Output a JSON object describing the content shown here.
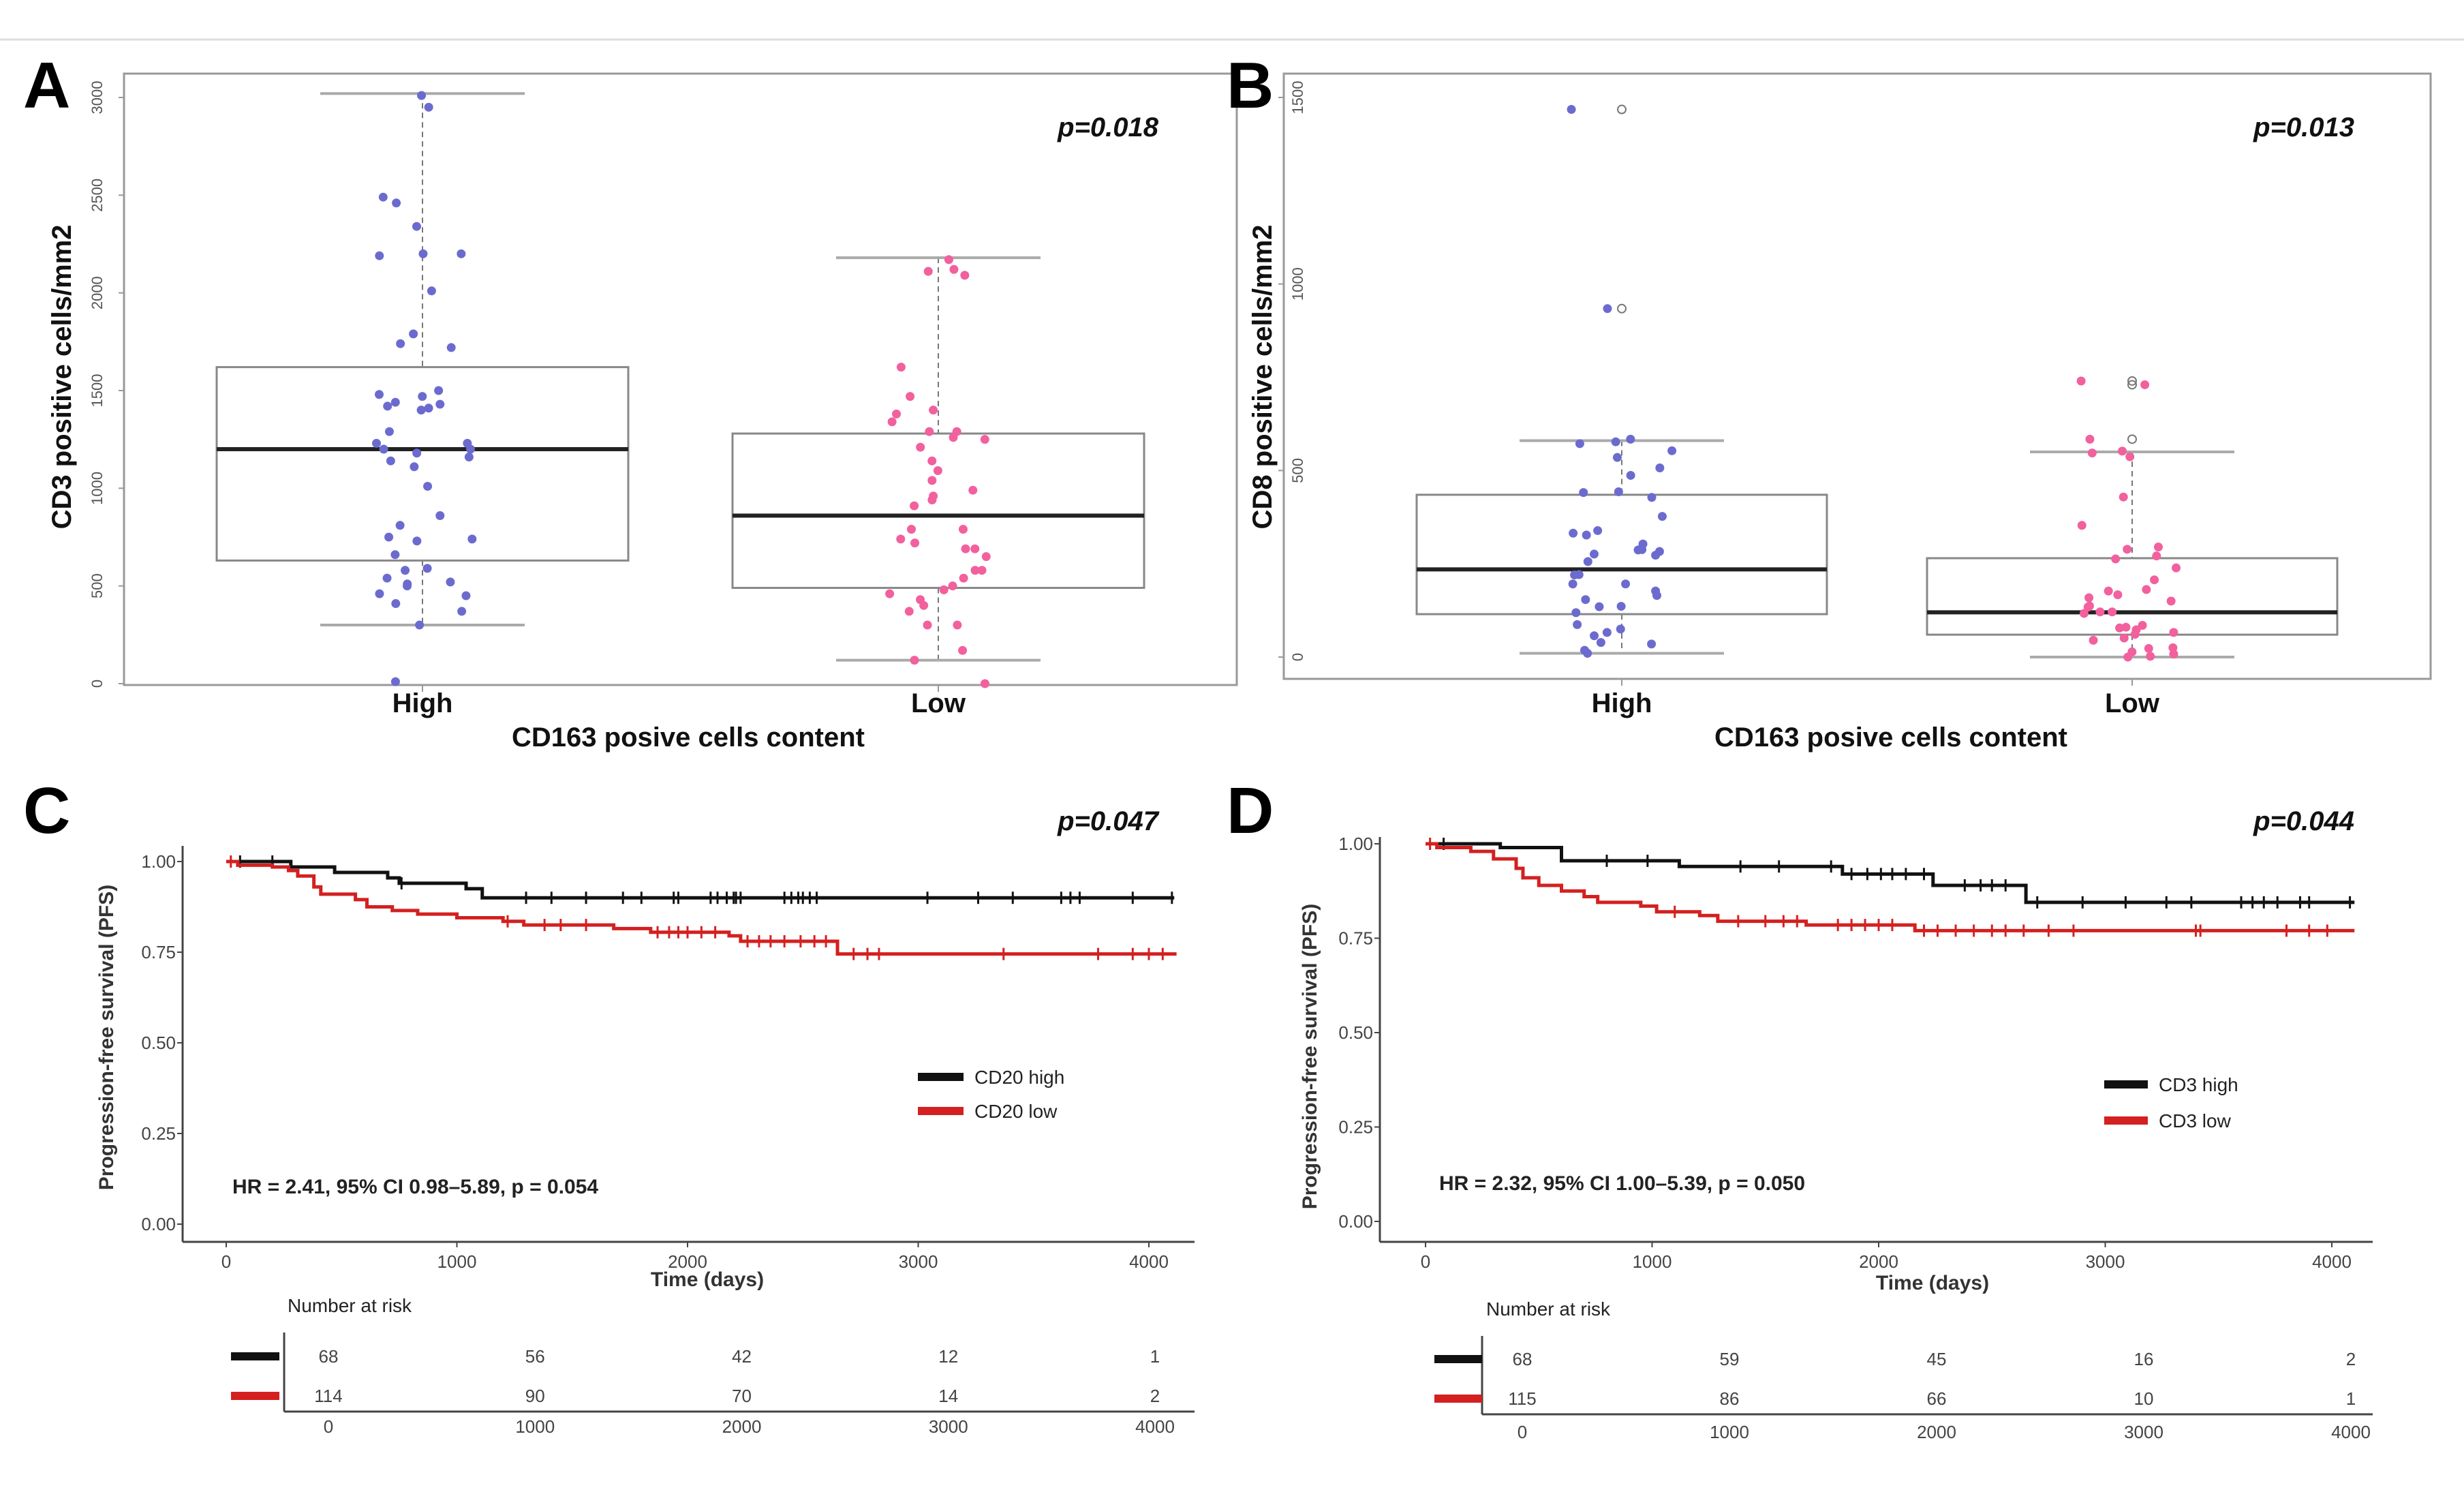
{
  "colors": {
    "high_dots": "#6b6bcf",
    "low_dots": "#f2609e",
    "km_high": "#111111",
    "km_low": "#d42020",
    "box": "#888888"
  },
  "chart_data": [
    {
      "panel": "A",
      "type": "box",
      "p_label": "p=0.018",
      "ylabel": "CD3 positive cells/mm2",
      "xlabel": "CD163 posive cells content",
      "ylim": [
        0,
        3000
      ],
      "yticks": [
        0,
        500,
        1000,
        1500,
        2000,
        2500,
        3000
      ],
      "categories": [
        "High",
        "Low"
      ],
      "boxes": [
        {
          "whisker_low": 300,
          "q1": 630,
          "median": 1200,
          "q3": 1620,
          "whisker_high": 3020,
          "outliers": []
        },
        {
          "whisker_low": 120,
          "q1": 490,
          "median": 860,
          "q3": 1280,
          "whisker_high": 2180,
          "outliers": []
        }
      ],
      "points": [
        [
          3010,
          2950,
          2490,
          2460,
          2340,
          2200,
          2190,
          2200,
          2010,
          1790,
          1740,
          1720,
          1500,
          1480,
          1470,
          1440,
          1430,
          1420,
          1410,
          1400,
          1290,
          1230,
          1230,
          1200,
          1200,
          1180,
          1160,
          1140,
          1110,
          1010,
          860,
          810,
          750,
          740,
          730,
          660,
          590,
          580,
          540,
          520,
          510,
          500,
          460,
          450,
          410,
          370,
          300,
          10
        ],
        [
          2170,
          2110,
          2090,
          2120,
          1620,
          1470,
          1400,
          1380,
          1340,
          1290,
          1290,
          1260,
          1250,
          1210,
          1140,
          1090,
          1040,
          990,
          960,
          940,
          910,
          790,
          790,
          740,
          720,
          690,
          690,
          650,
          580,
          580,
          540,
          500,
          480,
          460,
          430,
          400,
          370,
          300,
          300,
          170,
          120,
          0
        ]
      ]
    },
    {
      "panel": "B",
      "type": "box",
      "p_label": "p=0.013",
      "ylabel": "CD8 positive cells/mm2",
      "xlabel": "CD163 posive cells content",
      "ylim": [
        0,
        1500
      ],
      "yticks": [
        0,
        500,
        1000,
        1500
      ],
      "categories": [
        "High",
        "Low"
      ],
      "boxes": [
        {
          "whisker_low": 10,
          "q1": 115,
          "median": 235,
          "q3": 435,
          "whisker_high": 580,
          "outliers": [
            934,
            1468
          ]
        },
        {
          "whisker_low": 0,
          "q1": 60,
          "median": 120,
          "q3": 265,
          "whisker_high": 550,
          "outliers": [
            584,
            730,
            740
          ]
        }
      ],
      "points": [
        [
          1468,
          934,
          584,
          577,
          572,
          553,
          535,
          507,
          487,
          443,
          441,
          428,
          377,
          339,
          332,
          327,
          303,
          288,
          287,
          283,
          276,
          273,
          256,
          220,
          221,
          196,
          196,
          177,
          165,
          154,
          136,
          119,
          135,
          75,
          87,
          66,
          57,
          39,
          35,
          18,
          10
        ],
        [
          740,
          730,
          584,
          552,
          547,
          537,
          429,
          353,
          295,
          289,
          271,
          263,
          239,
          207,
          181,
          177,
          167,
          159,
          150,
          137,
          134,
          121,
          121,
          117,
          85,
          80,
          78,
          73,
          66,
          61,
          51,
          45,
          25,
          23,
          14,
          8,
          2,
          0
        ]
      ]
    },
    {
      "panel": "C",
      "type": "line",
      "p_label": "p=0.047",
      "ylabel": "Progression-free survival (PFS)",
      "xlabel": "Time (days)",
      "xlim": [
        0,
        4000
      ],
      "ylim": [
        0,
        1
      ],
      "xticks": [
        "0",
        "1000",
        "2000",
        "3000",
        "4000"
      ],
      "yticks": [
        "0.00",
        "0.25",
        "0.50",
        "0.75",
        "1.00"
      ],
      "annotation": "HR = 2.41, 95% CI 0.98–5.89, p = 0.054",
      "series": [
        {
          "name": "CD20 high",
          "steps": [
            [
              0,
              1.0
            ],
            [
              280,
              0.985
            ],
            [
              470,
              0.97
            ],
            [
              700,
              0.955
            ],
            [
              750,
              0.94
            ],
            [
              1040,
              0.925
            ],
            [
              1110,
              0.9
            ]
          ],
          "end": 4110,
          "censored": [
            60,
            200,
            760,
            1300,
            1410,
            1560,
            1720,
            1800,
            1940,
            1960,
            2100,
            2130,
            2170,
            2200,
            2210,
            2230,
            2420,
            2450,
            2480,
            2500,
            2530,
            2560,
            3040,
            3260,
            3410,
            3620,
            3660,
            3700,
            3930,
            4100
          ]
        },
        {
          "name": "CD20 low",
          "steps": [
            [
              0,
              1.0
            ],
            [
              50,
              0.99
            ],
            [
              200,
              0.985
            ],
            [
              270,
              0.975
            ],
            [
              310,
              0.96
            ],
            [
              380,
              0.93
            ],
            [
              410,
              0.91
            ],
            [
              560,
              0.895
            ],
            [
              610,
              0.875
            ],
            [
              720,
              0.865
            ],
            [
              830,
              0.855
            ],
            [
              1000,
              0.845
            ],
            [
              1200,
              0.835
            ],
            [
              1290,
              0.825
            ],
            [
              1680,
              0.815
            ],
            [
              1840,
              0.805
            ],
            [
              2180,
              0.795
            ],
            [
              2230,
              0.78
            ],
            [
              2650,
              0.745
            ]
          ],
          "end": 4120,
          "censored": [
            20,
            1220,
            1380,
            1450,
            1560,
            1870,
            1920,
            1960,
            2000,
            2060,
            2120,
            2260,
            2310,
            2360,
            2420,
            2490,
            2550,
            2600,
            2720,
            2780,
            2830,
            3370,
            3780,
            3930,
            4000,
            4060
          ]
        }
      ],
      "risk_table": {
        "title": "Number at risk",
        "times": [
          "0",
          "1000",
          "2000",
          "3000",
          "4000"
        ],
        "rows": [
          [
            "68",
            "56",
            "42",
            "12",
            "1"
          ],
          [
            "114",
            "90",
            "70",
            "14",
            "2"
          ]
        ]
      }
    },
    {
      "panel": "D",
      "type": "line",
      "p_label": "p=0.044",
      "ylabel": "Progression-free survival (PFS)",
      "xlabel": "Time (days)",
      "xlim": [
        0,
        4000
      ],
      "ylim": [
        0,
        1
      ],
      "xticks": [
        "0",
        "1000",
        "2000",
        "3000",
        "4000"
      ],
      "yticks": [
        "0.00",
        "0.25",
        "0.50",
        "0.75",
        "1.00"
      ],
      "annotation": "HR = 2.32, 95% CI 1.00–5.39, p = 0.050",
      "series": [
        {
          "name": "CD3 high",
          "steps": [
            [
              0,
              1.0
            ],
            [
              330,
              0.99
            ],
            [
              600,
              0.955
            ],
            [
              1120,
              0.94
            ],
            [
              1840,
              0.92
            ],
            [
              2240,
              0.89
            ],
            [
              2650,
              0.845
            ]
          ],
          "end": 4100,
          "censored": [
            80,
            800,
            980,
            1390,
            1560,
            1790,
            1880,
            1950,
            2010,
            2060,
            2120,
            2200,
            2380,
            2450,
            2500,
            2560,
            2700,
            2900,
            3090,
            3270,
            3380,
            3600,
            3650,
            3700,
            3760,
            3860,
            3900,
            4080
          ]
        },
        {
          "name": "CD3 low",
          "steps": [
            [
              0,
              1.0
            ],
            [
              50,
              0.99
            ],
            [
              200,
              0.98
            ],
            [
              300,
              0.96
            ],
            [
              400,
              0.935
            ],
            [
              430,
              0.91
            ],
            [
              500,
              0.89
            ],
            [
              600,
              0.875
            ],
            [
              700,
              0.86
            ],
            [
              760,
              0.845
            ],
            [
              950,
              0.835
            ],
            [
              1020,
              0.82
            ],
            [
              1210,
              0.81
            ],
            [
              1290,
              0.795
            ],
            [
              1680,
              0.785
            ],
            [
              2160,
              0.77
            ]
          ],
          "end": 4100,
          "censored": [
            20,
            1100,
            1380,
            1500,
            1580,
            1640,
            1820,
            1880,
            1940,
            2000,
            2060,
            2200,
            2260,
            2340,
            2420,
            2500,
            2560,
            2640,
            2750,
            2860,
            3400,
            3420,
            3800,
            3900,
            3980
          ]
        }
      ],
      "risk_table": {
        "title": "Number at risk",
        "times": [
          "0",
          "1000",
          "2000",
          "3000",
          "4000"
        ],
        "rows": [
          [
            "68",
            "59",
            "45",
            "16",
            "2"
          ],
          [
            "115",
            "86",
            "66",
            "10",
            "1"
          ]
        ]
      }
    }
  ]
}
